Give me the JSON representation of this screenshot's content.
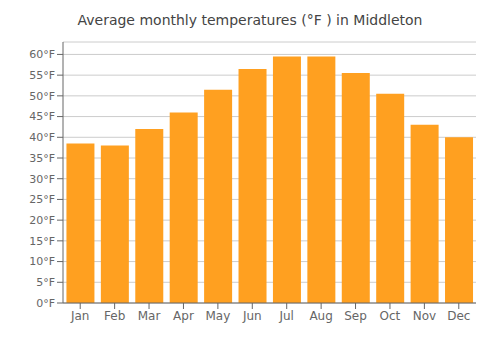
{
  "chart_data": {
    "type": "bar",
    "title": "Average monthly temperatures (°F ) in Middleton",
    "categories": [
      "Jan",
      "Feb",
      "Mar",
      "Apr",
      "May",
      "Jun",
      "Jul",
      "Aug",
      "Sep",
      "Oct",
      "Nov",
      "Dec"
    ],
    "values": [
      38.5,
      38.0,
      42.0,
      46.0,
      51.5,
      56.5,
      59.5,
      59.5,
      55.5,
      50.5,
      43.0,
      40.0
    ],
    "color": "#FFA020",
    "ylim": [
      0,
      63
    ],
    "yticks": [
      {
        "value": 0,
        "label": "0°F"
      },
      {
        "value": 5,
        "label": "5°F"
      },
      {
        "value": 10,
        "label": "10°F"
      },
      {
        "value": 15,
        "label": "15°F"
      },
      {
        "value": 20,
        "label": "20°F"
      },
      {
        "value": 25,
        "label": "25°F"
      },
      {
        "value": 30,
        "label": "30°F"
      },
      {
        "value": 35,
        "label": "35°F"
      },
      {
        "value": 40,
        "label": "40°F"
      },
      {
        "value": 45,
        "label": "45°F"
      },
      {
        "value": 50,
        "label": "50°F"
      },
      {
        "value": 55,
        "label": "55°F"
      },
      {
        "value": 60,
        "label": "60°F"
      }
    ],
    "grid": true
  }
}
